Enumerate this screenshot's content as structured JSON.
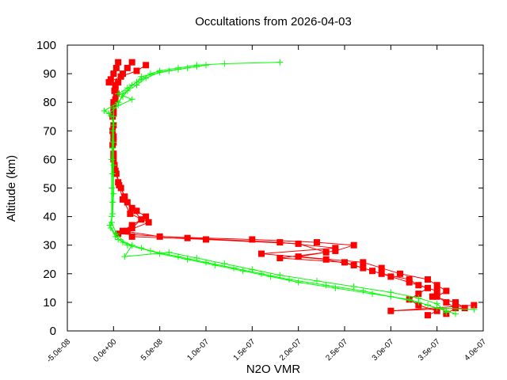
{
  "chart_data": {
    "type": "line",
    "title": "Occultations from 2026-04-03",
    "xlabel": "N2O VMR",
    "ylabel": "Altitude (km)",
    "xlim": [
      -5e-08,
      4e-07
    ],
    "ylim": [
      0,
      100
    ],
    "x_ticks": [
      -5e-08,
      0,
      5e-08,
      1e-07,
      1.5e-07,
      2e-07,
      2.5e-07,
      3e-07,
      3.5e-07,
      4e-07
    ],
    "x_tick_labels": [
      "-5.0e-08",
      "0.0e+00",
      "5.0e-08",
      "1.0e-07",
      "1.5e-07",
      "2.0e-07",
      "2.5e-07",
      "3.0e-07",
      "3.5e-07",
      "4.0e-07"
    ],
    "y_ticks": [
      0,
      10,
      20,
      30,
      40,
      50,
      60,
      70,
      80,
      90,
      100
    ],
    "y_tick_labels": [
      "0",
      "10",
      "20",
      "30",
      "40",
      "50",
      "60",
      "70",
      "80",
      "90",
      "100"
    ],
    "grid": false,
    "legend": "none",
    "series": [
      {
        "color": "#ff0000",
        "marker": "filled-square",
        "profiles": [
          [
            [
              5e-09,
              94
            ],
            [
              3e-09,
              92
            ],
            [
              0,
              90
            ],
            [
              -3e-09,
              88
            ],
            [
              2e-09,
              86
            ],
            [
              1e-09,
              84
            ],
            [
              0,
              80
            ],
            [
              -1e-09,
              75
            ],
            [
              -1e-09,
              70
            ],
            [
              -1e-09,
              65
            ],
            [
              0,
              60
            ],
            [
              3e-09,
              55
            ],
            [
              8e-09,
              50
            ],
            [
              1.5e-08,
              45
            ],
            [
              2.5e-08,
              42
            ],
            [
              3.5e-08,
              40
            ],
            [
              2e-08,
              37
            ],
            [
              1e-08,
              35
            ],
            [
              5e-08,
              33
            ],
            [
              1.5e-07,
              32
            ],
            [
              2.2e-07,
              31
            ],
            [
              2.6e-07,
              30
            ],
            [
              2.4e-07,
              28
            ],
            [
              2e-07,
              26
            ],
            [
              2.7e-07,
              24
            ],
            [
              2.9e-07,
              22
            ],
            [
              3.1e-07,
              20
            ],
            [
              3.4e-07,
              18
            ],
            [
              3.5e-07,
              16
            ],
            [
              3.6e-07,
              14
            ],
            [
              3.5e-07,
              12
            ],
            [
              3.6e-07,
              10
            ],
            [
              3.7e-07,
              8
            ],
            [
              3.6e-07,
              6
            ]
          ],
          [
            [
              2e-08,
              94
            ],
            [
              1.5e-08,
              92
            ],
            [
              1e-08,
              90
            ],
            [
              5e-09,
              87
            ],
            [
              3e-09,
              83
            ],
            [
              0,
              78
            ],
            [
              0,
              72
            ],
            [
              0,
              66
            ],
            [
              1e-09,
              58
            ],
            [
              5e-09,
              52
            ],
            [
              1.2e-08,
              47
            ],
            [
              2e-08,
              43
            ],
            [
              3e-08,
              39
            ],
            [
              2e-08,
              36
            ],
            [
              5e-09,
              34
            ],
            [
              8e-08,
              32.5
            ],
            [
              1.8e-07,
              31
            ],
            [
              2.4e-07,
              29
            ],
            [
              1.6e-07,
              27
            ],
            [
              2.3e-07,
              25
            ],
            [
              2.6e-07,
              23
            ],
            [
              2.8e-07,
              21
            ],
            [
              3e-07,
              19
            ],
            [
              3.2e-07,
              17
            ],
            [
              3.4e-07,
              15
            ],
            [
              3.3e-07,
              13
            ],
            [
              3.2e-07,
              11
            ],
            [
              3.3e-07,
              9
            ],
            [
              3.5e-07,
              7
            ],
            [
              3.4e-07,
              5.5
            ]
          ],
          [
            [
              3.5e-08,
              93
            ],
            [
              2.5e-08,
              91
            ],
            [
              8e-09,
              89
            ],
            [
              -5e-09,
              87
            ],
            [
              2e-09,
              85
            ],
            [
              2e-09,
              81
            ],
            [
              0,
              76
            ],
            [
              0,
              68
            ],
            [
              0,
              62
            ],
            [
              2e-09,
              56
            ],
            [
              6e-09,
              51
            ],
            [
              1e-08,
              46
            ],
            [
              1.8e-08,
              41
            ],
            [
              3.8e-08,
              38
            ],
            [
              1.5e-08,
              35
            ],
            [
              2e-08,
              33
            ],
            [
              1e-07,
              32
            ],
            [
              2e-07,
              30.5
            ],
            [
              2.3e-07,
              27.5
            ],
            [
              1.8e-07,
              25.5
            ],
            [
              2.5e-07,
              24
            ],
            [
              2.7e-07,
              22
            ],
            [
              2.9e-07,
              20
            ],
            [
              3.2e-07,
              18
            ],
            [
              3.3e-07,
              16
            ],
            [
              3.5e-07,
              14
            ],
            [
              3.45e-07,
              12
            ],
            [
              3.7e-07,
              10
            ],
            [
              3.8e-07,
              8
            ],
            [
              3e-07,
              7
            ],
            [
              3.9e-07,
              9
            ]
          ]
        ]
      },
      {
        "color": "#00ff00",
        "marker": "plus",
        "profiles": [
          [
            [
              1.8e-07,
              94
            ],
            [
              1.2e-07,
              93.5
            ],
            [
              9e-08,
              93
            ],
            [
              7e-08,
              92
            ],
            [
              5e-08,
              91
            ],
            [
              4e-08,
              90
            ],
            [
              3e-08,
              88
            ],
            [
              2e-08,
              86
            ],
            [
              1.5e-08,
              84
            ],
            [
              1e-08,
              82
            ],
            [
              5e-09,
              80
            ],
            [
              -1e-08,
              77
            ],
            [
              0,
              75
            ],
            [
              -1e-09,
              70
            ],
            [
              -2e-09,
              60
            ],
            [
              -2e-09,
              50
            ],
            [
              -2e-09,
              40
            ],
            [
              -3e-09,
              36
            ],
            [
              2e-09,
              33
            ],
            [
              1e-08,
              31
            ],
            [
              3e-08,
              29
            ],
            [
              5e-08,
              27
            ],
            [
              8e-08,
              25
            ],
            [
              1.1e-07,
              23
            ],
            [
              1.4e-07,
              21
            ],
            [
              1.7e-07,
              19
            ],
            [
              2e-07,
              17
            ],
            [
              2.4e-07,
              15
            ],
            [
              2.8e-07,
              13
            ],
            [
              3.2e-07,
              11
            ],
            [
              3.4e-07,
              9
            ],
            [
              3.6e-07,
              7
            ],
            [
              3.7e-07,
              6
            ]
          ],
          [
            [
              1e-07,
              93
            ],
            [
              8e-08,
              92
            ],
            [
              6e-08,
              91
            ],
            [
              3e-08,
              89
            ],
            [
              2.5e-08,
              87
            ],
            [
              1.5e-08,
              85
            ],
            [
              5e-09,
              83
            ],
            [
              2e-08,
              81
            ],
            [
              0,
              78
            ],
            [
              0,
              72
            ],
            [
              -1e-09,
              64
            ],
            [
              -1e-09,
              55
            ],
            [
              -1e-09,
              45
            ],
            [
              -2e-09,
              38
            ],
            [
              3e-09,
              34
            ],
            [
              1.5e-08,
              30
            ],
            [
              4e-08,
              28
            ],
            [
              7e-08,
              26
            ],
            [
              1e-07,
              24
            ],
            [
              1.3e-07,
              22
            ],
            [
              1.6e-07,
              20
            ],
            [
              1.9e-07,
              18
            ],
            [
              2.3e-07,
              16
            ],
            [
              2.7e-07,
              14
            ],
            [
              3e-07,
              12
            ],
            [
              3.3e-07,
              10
            ],
            [
              3.5e-07,
              8
            ],
            [
              3.9e-07,
              7.5
            ]
          ],
          [
            [
              9e-08,
              92.5
            ],
            [
              7e-08,
              91.5
            ],
            [
              5e-08,
              90.5
            ],
            [
              3.5e-08,
              88.5
            ],
            [
              2.5e-08,
              86
            ],
            [
              1e-08,
              83
            ],
            [
              5e-09,
              79
            ],
            [
              -5e-09,
              76
            ],
            [
              0,
              73
            ],
            [
              0,
              66
            ],
            [
              0,
              58
            ],
            [
              0,
              48
            ],
            [
              -1e-09,
              41
            ],
            [
              -4e-09,
              37
            ],
            [
              5e-09,
              32
            ],
            [
              2e-08,
              30
            ],
            [
              1.2e-08,
              26
            ],
            [
              6e-08,
              27.5
            ],
            [
              9e-08,
              25.5
            ],
            [
              1.2e-07,
              23.5
            ],
            [
              1.5e-07,
              21.5
            ],
            [
              1.8e-07,
              19.5
            ],
            [
              2.2e-07,
              17.5
            ],
            [
              2.6e-07,
              15.5
            ],
            [
              3e-07,
              13.5
            ],
            [
              3.3e-07,
              11.5
            ],
            [
              3.5e-07,
              9.5
            ],
            [
              3.6e-07,
              6.5
            ]
          ]
        ]
      }
    ]
  }
}
